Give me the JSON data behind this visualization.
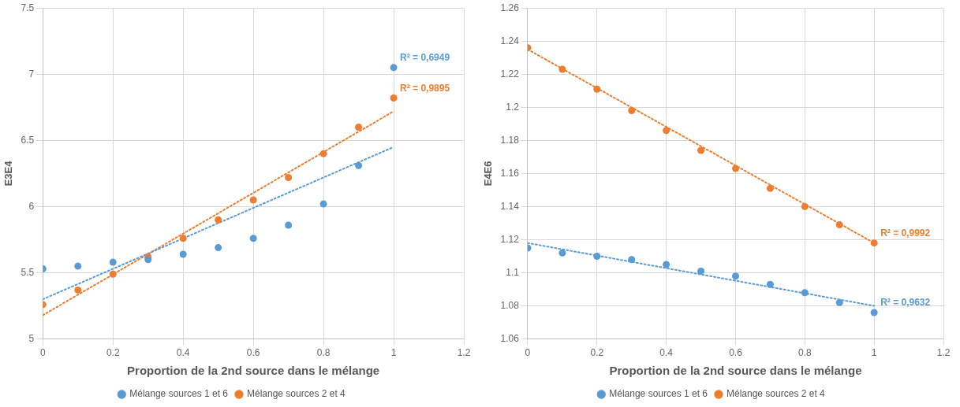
{
  "chart_data": [
    {
      "type": "scatter",
      "xlabel": "Proportion de la 2nd source dans le mélange",
      "ylabel": "E3E4",
      "x": [
        0,
        0.1,
        0.2,
        0.3,
        0.4,
        0.5,
        0.6,
        0.7,
        0.8,
        0.9,
        1
      ],
      "xlim": [
        0,
        1.2
      ],
      "xticks": [
        0,
        0.2,
        0.4,
        0.6,
        0.8,
        1,
        1.2
      ],
      "ylim": [
        5,
        7.5
      ],
      "yticks": [
        5,
        5.5,
        6,
        6.5,
        7,
        7.5
      ],
      "grid": true,
      "legend": "bottom",
      "marker": "circle",
      "series": [
        {
          "name": "Mélange sources 1 et 6",
          "color": "#5b9bd5",
          "values": [
            5.53,
            5.55,
            5.58,
            5.6,
            5.64,
            5.69,
            5.76,
            5.86,
            6.02,
            6.31,
            7.05
          ]
        },
        {
          "name": "Mélange sources 2 et 4",
          "color": "#ed7d31",
          "values": [
            5.26,
            5.37,
            5.49,
            5.62,
            5.76,
            5.9,
            6.05,
            6.22,
            6.4,
            6.6,
            6.82
          ]
        },
        {
          "type": "line",
          "color": "#5b9bd5",
          "values": [
            5.3,
            5.415,
            5.53,
            5.645,
            5.76,
            5.875,
            5.99,
            6.105,
            6.22,
            6.335,
            6.45
          ],
          "marker": "none",
          "line_style": "dotted"
        },
        {
          "type": "line",
          "color": "#ed7d31",
          "values": [
            5.18,
            5.334,
            5.488,
            5.642,
            5.796,
            5.95,
            6.104,
            6.258,
            6.412,
            6.566,
            6.72
          ],
          "marker": "none",
          "line_style": "dotted"
        }
      ],
      "annotations": [
        "R² = 0,6949",
        "R² = 0,9895"
      ]
    },
    {
      "type": "scatter",
      "xlabel": "Proportion de la 2nd source dans le mélange",
      "ylabel": "E4E6",
      "x": [
        0,
        0.1,
        0.2,
        0.3,
        0.4,
        0.5,
        0.6,
        0.7,
        0.8,
        0.9,
        1
      ],
      "xlim": [
        0,
        1.2
      ],
      "xticks": [
        0,
        0.2,
        0.4,
        0.6,
        0.8,
        1,
        1.2
      ],
      "ylim": [
        1.06,
        1.26
      ],
      "yticks": [
        1.06,
        1.08,
        1.1,
        1.12,
        1.14,
        1.16,
        1.18,
        1.2,
        1.22,
        1.24,
        1.26
      ],
      "grid": true,
      "legend": "bottom",
      "marker": "circle",
      "series": [
        {
          "name": "Mélange sources 1 et 6",
          "color": "#5b9bd5",
          "values": [
            1.115,
            1.112,
            1.11,
            1.108,
            1.105,
            1.101,
            1.098,
            1.093,
            1.088,
            1.082,
            1.076
          ]
        },
        {
          "name": "Mélange sources 2 et 4",
          "color": "#ed7d31",
          "values": [
            1.236,
            1.223,
            1.211,
            1.198,
            1.186,
            1.174,
            1.163,
            1.151,
            1.14,
            1.129,
            1.118
          ]
        },
        {
          "type": "line",
          "color": "#5b9bd5",
          "values": [
            1.118,
            1.1142,
            1.1104,
            1.1066,
            1.1028,
            1.099,
            1.0952,
            1.0914,
            1.0876,
            1.0838,
            1.08
          ],
          "marker": "none",
          "line_style": "dotted"
        },
        {
          "type": "line",
          "color": "#ed7d31",
          "values": [
            1.235,
            1.2233,
            1.2116,
            1.1999,
            1.1882,
            1.1765,
            1.1648,
            1.1531,
            1.1414,
            1.1297,
            1.118
          ],
          "marker": "none",
          "line_style": "dotted"
        }
      ],
      "annotations": [
        "R² = 0,9632",
        "R² = 0,9992"
      ]
    }
  ]
}
